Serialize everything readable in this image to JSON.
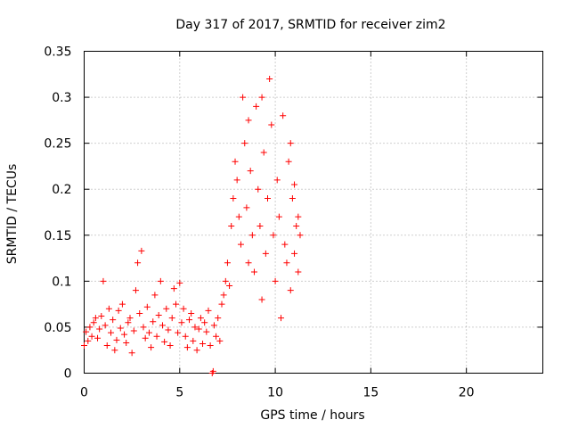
{
  "chart_data": {
    "type": "scatter",
    "title": "Day 317 of 2017, SRMTID for receiver zim2",
    "xlabel": "GPS time / hours",
    "ylabel": "SRMTID / TECUs",
    "xlim": [
      0,
      24
    ],
    "ylim": [
      0,
      0.35
    ],
    "xticks": [
      0,
      5,
      10,
      15,
      20
    ],
    "yticks": [
      0,
      0.05,
      0.1,
      0.15,
      0.2,
      0.25,
      0.3,
      0.35
    ],
    "xtick_labels": [
      "0",
      "5",
      "10",
      "15",
      "20"
    ],
    "ytick_labels": [
      "0",
      "0.05",
      "0.1",
      "0.15",
      "0.2",
      "0.25",
      "0.3",
      "0.35"
    ],
    "grid": true,
    "marker": "+",
    "series": [
      {
        "name": "SRMTID",
        "color": "#ff0000",
        "points": [
          [
            0.0,
            0.03
          ],
          [
            0.1,
            0.045
          ],
          [
            0.2,
            0.035
          ],
          [
            0.3,
            0.05
          ],
          [
            0.4,
            0.04
          ],
          [
            0.5,
            0.055
          ],
          [
            0.6,
            0.06
          ],
          [
            0.7,
            0.038
          ],
          [
            0.8,
            0.048
          ],
          [
            0.9,
            0.062
          ],
          [
            1.0,
            0.1
          ],
          [
            1.1,
            0.052
          ],
          [
            1.2,
            0.03
          ],
          [
            1.3,
            0.07
          ],
          [
            1.4,
            0.044
          ],
          [
            1.5,
            0.058
          ],
          [
            1.6,
            0.025
          ],
          [
            1.7,
            0.036
          ],
          [
            1.8,
            0.068
          ],
          [
            1.9,
            0.049
          ],
          [
            2.0,
            0.075
          ],
          [
            2.1,
            0.042
          ],
          [
            2.2,
            0.033
          ],
          [
            2.3,
            0.055
          ],
          [
            2.4,
            0.06
          ],
          [
            2.5,
            0.022
          ],
          [
            2.6,
            0.046
          ],
          [
            2.7,
            0.09
          ],
          [
            2.8,
            0.12
          ],
          [
            2.9,
            0.065
          ],
          [
            3.0,
            0.133
          ],
          [
            3.1,
            0.05
          ],
          [
            3.2,
            0.038
          ],
          [
            3.3,
            0.072
          ],
          [
            3.4,
            0.044
          ],
          [
            3.5,
            0.028
          ],
          [
            3.6,
            0.056
          ],
          [
            3.7,
            0.085
          ],
          [
            3.8,
            0.04
          ],
          [
            3.9,
            0.063
          ],
          [
            4.0,
            0.1
          ],
          [
            4.1,
            0.052
          ],
          [
            4.2,
            0.034
          ],
          [
            4.3,
            0.07
          ],
          [
            4.4,
            0.047
          ],
          [
            4.5,
            0.03
          ],
          [
            4.6,
            0.06
          ],
          [
            4.7,
            0.092
          ],
          [
            4.8,
            0.075
          ],
          [
            4.9,
            0.044
          ],
          [
            5.0,
            0.098
          ],
          [
            5.1,
            0.055
          ],
          [
            5.2,
            0.07
          ],
          [
            5.3,
            0.04
          ],
          [
            5.4,
            0.028
          ],
          [
            5.5,
            0.058
          ],
          [
            5.6,
            0.065
          ],
          [
            5.7,
            0.035
          ],
          [
            5.8,
            0.05
          ],
          [
            5.9,
            0.025
          ],
          [
            6.0,
            0.048
          ],
          [
            6.1,
            0.06
          ],
          [
            6.2,
            0.032
          ],
          [
            6.3,
            0.055
          ],
          [
            6.4,
            0.045
          ],
          [
            6.5,
            0.068
          ],
          [
            6.6,
            0.03
          ],
          [
            6.7,
            0.0
          ],
          [
            6.75,
            0.002
          ],
          [
            6.8,
            0.052
          ],
          [
            6.9,
            0.04
          ],
          [
            7.0,
            0.06
          ],
          [
            7.1,
            0.035
          ],
          [
            7.2,
            0.075
          ],
          [
            7.3,
            0.085
          ],
          [
            7.4,
            0.1
          ],
          [
            7.5,
            0.12
          ],
          [
            7.6,
            0.095
          ],
          [
            7.7,
            0.16
          ],
          [
            7.8,
            0.19
          ],
          [
            7.9,
            0.23
          ],
          [
            8.0,
            0.21
          ],
          [
            8.1,
            0.17
          ],
          [
            8.2,
            0.14
          ],
          [
            8.3,
            0.3
          ],
          [
            8.4,
            0.25
          ],
          [
            8.5,
            0.18
          ],
          [
            8.6,
            0.12
          ],
          [
            8.7,
            0.22
          ],
          [
            8.8,
            0.15
          ],
          [
            8.9,
            0.11
          ],
          [
            9.0,
            0.29
          ],
          [
            9.1,
            0.2
          ],
          [
            9.2,
            0.16
          ],
          [
            9.3,
            0.08
          ],
          [
            9.4,
            0.24
          ],
          [
            9.5,
            0.13
          ],
          [
            9.6,
            0.19
          ],
          [
            9.7,
            0.32
          ],
          [
            9.8,
            0.27
          ],
          [
            9.9,
            0.15
          ],
          [
            10.0,
            0.1
          ],
          [
            10.1,
            0.21
          ],
          [
            10.2,
            0.17
          ],
          [
            10.3,
            0.06
          ],
          [
            10.4,
            0.28
          ],
          [
            10.5,
            0.14
          ],
          [
            10.6,
            0.12
          ],
          [
            10.7,
            0.23
          ],
          [
            10.8,
            0.09
          ],
          [
            10.9,
            0.19
          ],
          [
            11.0,
            0.13
          ],
          [
            11.1,
            0.16
          ],
          [
            11.2,
            0.17
          ],
          [
            11.3,
            0.15
          ],
          [
            11.2,
            0.11
          ],
          [
            11.0,
            0.205
          ],
          [
            10.8,
            0.25
          ],
          [
            8.6,
            0.275
          ],
          [
            9.3,
            0.3
          ]
        ]
      }
    ]
  }
}
